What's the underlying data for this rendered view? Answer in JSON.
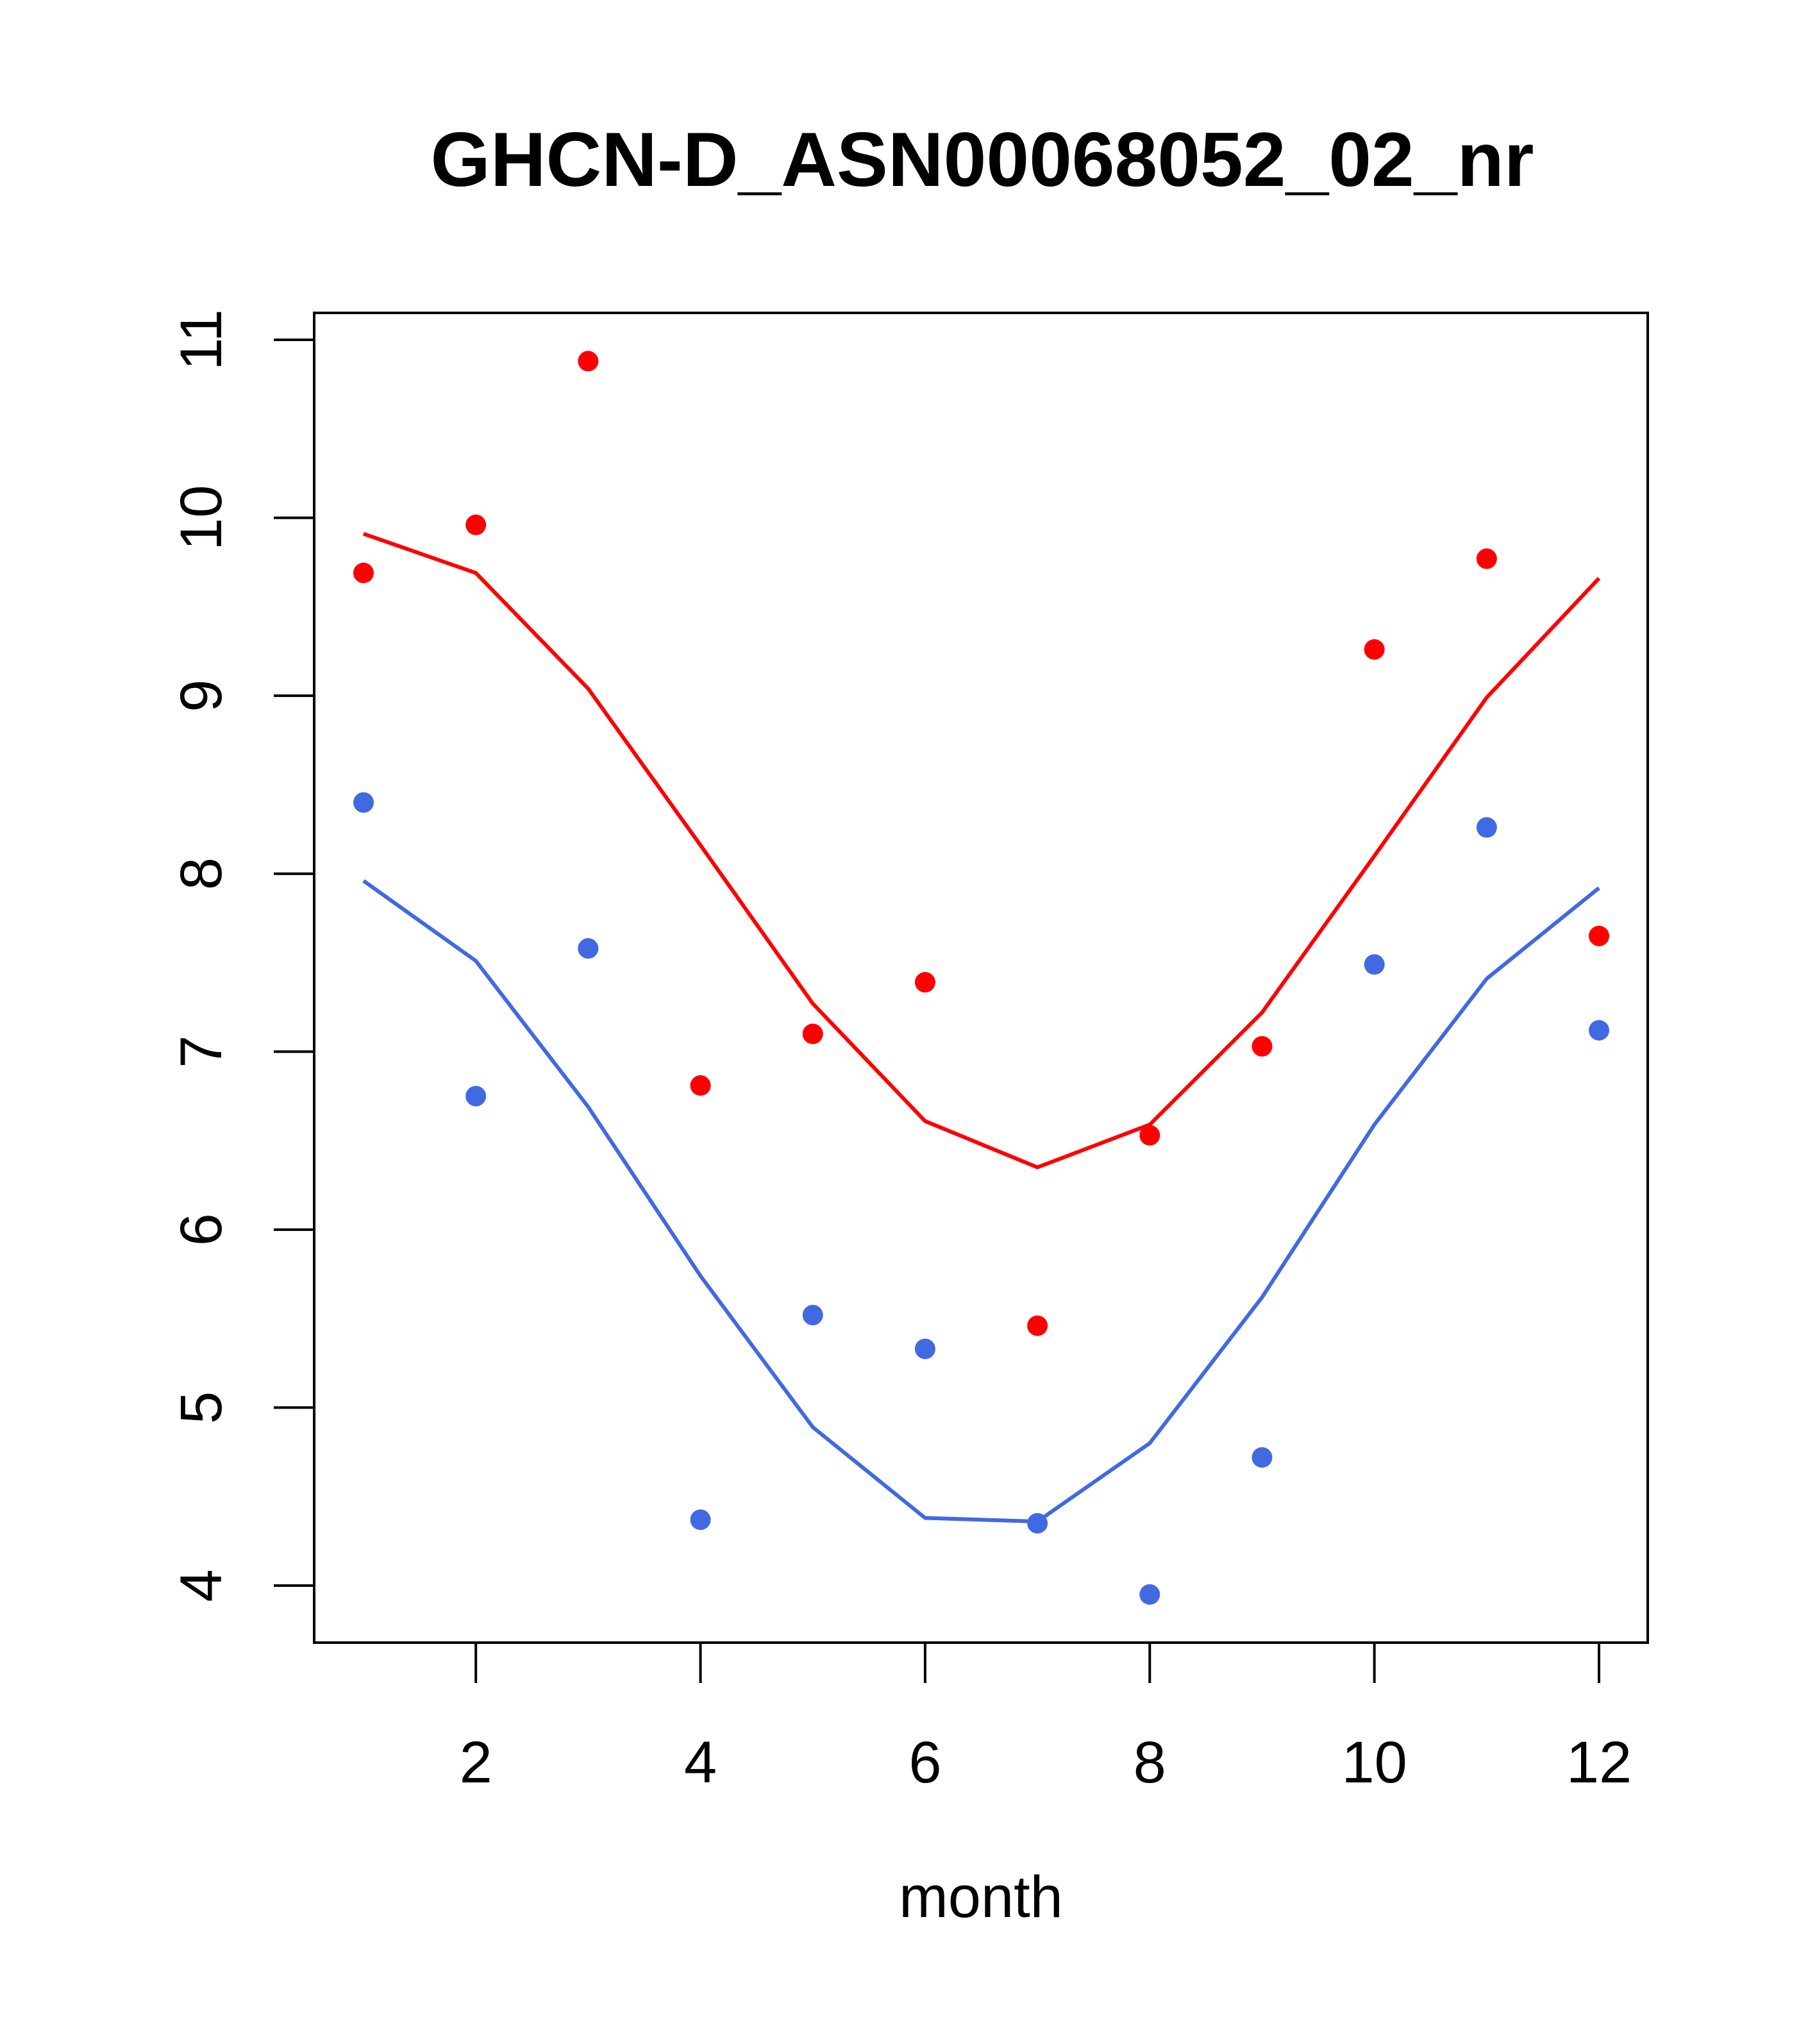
{
  "chart_data": {
    "type": "scatter",
    "title": "GHCN-D_ASN00068052_02_nr",
    "xlabel": "month",
    "ylabel": "",
    "xlim": [
      0.78,
      12.78
    ],
    "ylim": [
      3.7,
      11.15
    ],
    "x_ticks": [
      2,
      4,
      6,
      8,
      10,
      12
    ],
    "y_ticks": [
      4,
      5,
      6,
      7,
      8,
      9,
      10,
      11
    ],
    "grid": false,
    "x": [
      1,
      2,
      3,
      4,
      5,
      6,
      7,
      8,
      9,
      10,
      11,
      12
    ],
    "series": [
      {
        "name": "red points",
        "kind": "points",
        "color": "#ff0000",
        "values": [
          9.69,
          9.96,
          10.88,
          6.81,
          7.1,
          7.39,
          5.46,
          6.53,
          7.03,
          9.26,
          9.77,
          7.65
        ]
      },
      {
        "name": "red line",
        "kind": "line",
        "color": "#ff0000",
        "values": [
          9.91,
          9.69,
          9.04,
          8.16,
          7.27,
          6.61,
          6.35,
          6.59,
          7.22,
          8.1,
          8.99,
          9.66
        ]
      },
      {
        "name": "blue points",
        "kind": "points",
        "color": "#4169e1",
        "values": [
          8.4,
          6.75,
          7.58,
          4.37,
          5.52,
          5.33,
          4.35,
          3.95,
          4.72,
          7.49,
          8.26,
          7.12
        ]
      },
      {
        "name": "blue line",
        "kind": "line",
        "color": "#4169e1",
        "values": [
          7.96,
          7.51,
          6.69,
          5.74,
          4.89,
          4.38,
          4.36,
          4.8,
          5.62,
          6.59,
          7.41,
          7.92
        ]
      }
    ]
  }
}
